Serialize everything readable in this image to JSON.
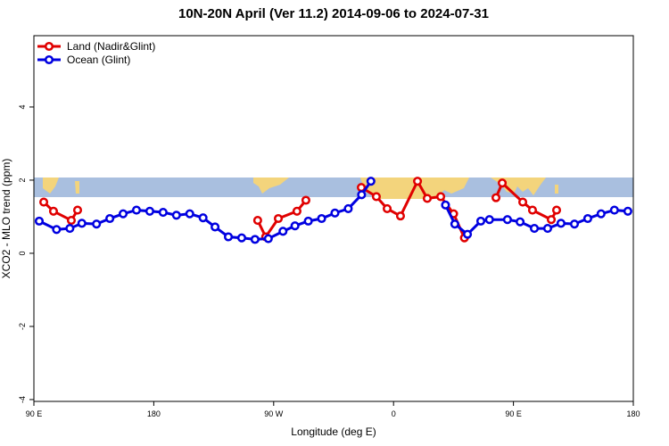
{
  "chart_data": {
    "type": "line",
    "title": "10N-20N April (Ver 11.2)   2014-09-06 to 2024-07-31",
    "x_label": "Longitude (deg E)",
    "y_label": "XCO2 - MLO trend (ppm)",
    "xlim": [
      90,
      540
    ],
    "xticks": [
      {
        "value": 90,
        "label": "90 E"
      },
      180,
      {
        "value": 270,
        "label": "90 W"
      },
      {
        "value": 360,
        "label": "0"
      },
      {
        "value": 450,
        "label": "90 E"
      },
      {
        "value": 540,
        "label": "180"
      }
    ],
    "ylim": [
      -4.05,
      5.95
    ],
    "yticks": [
      -4,
      -2,
      0,
      2,
      4
    ],
    "legend": "top-left",
    "series": [
      {
        "name": "Land (Nadir&Glint)",
        "color": "#e00000",
        "x": [
          97.4,
          104.7,
          118.1,
          122.8,
          null,
          258,
          264,
          273.5,
          287.5,
          294.2,
          null,
          335.8,
          347.1,
          355.2,
          365.2,
          378,
          385.3,
          395.4,
          405.1,
          413.2,
          null,
          436.9,
          441.6,
          457,
          464.3,
          478.4,
          482.4
        ],
        "values": [
          1.4,
          1.15,
          0.9,
          1.18,
          null,
          0.9,
          0.45,
          0.95,
          1.15,
          1.45,
          null,
          1.8,
          1.55,
          1.22,
          1.02,
          1.97,
          1.5,
          1.55,
          1.08,
          0.42,
          null,
          1.52,
          1.92,
          1.4,
          1.18,
          0.92,
          1.18
        ]
      },
      {
        "name": "Ocean (Glint)",
        "color": "#0000e0",
        "x": [
          94,
          107,
          117,
          126,
          137,
          147,
          157,
          167,
          177,
          187,
          197,
          207,
          217,
          226,
          236,
          246,
          256,
          266,
          277,
          286,
          296,
          306,
          316,
          326,
          336,
          343,
          null,
          399,
          406,
          415.5,
          425.5,
          432,
          445.5,
          455,
          465.7,
          475.7,
          485.7,
          495.8,
          505.8,
          515.8,
          525.8,
          535.9
        ],
        "values": [
          0.88,
          0.65,
          0.68,
          0.82,
          0.8,
          0.95,
          1.08,
          1.18,
          1.15,
          1.12,
          1.04,
          1.08,
          0.97,
          0.72,
          0.45,
          0.42,
          0.38,
          0.4,
          0.6,
          0.75,
          0.88,
          0.95,
          1.1,
          1.22,
          1.6,
          1.97,
          null,
          1.32,
          0.8,
          0.52,
          0.88,
          0.92,
          0.92,
          0.86,
          0.68,
          0.68,
          0.82,
          0.8,
          0.95,
          1.08,
          1.18,
          1.15
        ]
      }
    ]
  }
}
